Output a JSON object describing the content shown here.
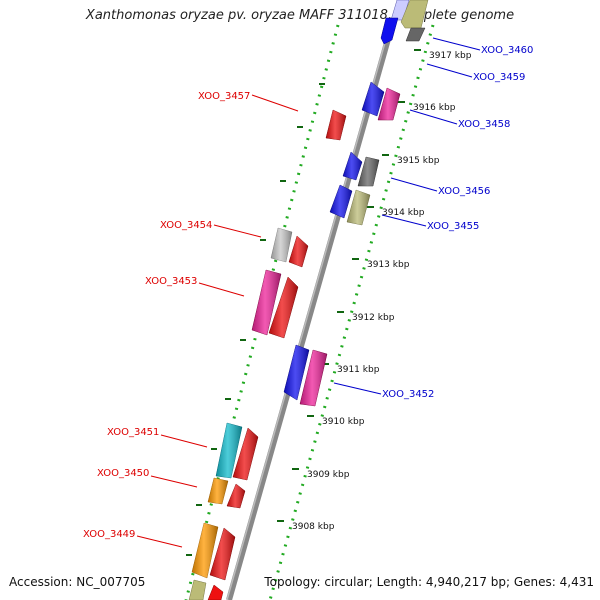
{
  "title": "Xanthomonas oryzae pv. oryzae MAFF 311018, complete genome",
  "footer": {
    "accession": "Accession: NC_007705",
    "topology": "Topology: circular; Length: 4,940,217 bp; Genes: 4,431"
  },
  "scale_labels": [
    "3917 kbp",
    "3916 kbp",
    "3915 kbp",
    "3914 kbp",
    "3913 kbp",
    "3912 kbp",
    "3911 kbp",
    "3910 kbp",
    "3909 kbp",
    "3908 kbp"
  ],
  "gene_labels": [
    {
      "text": "XOO_3460",
      "color": "#0000cc",
      "side": "right"
    },
    {
      "text": "XOO_3459",
      "color": "#0000cc",
      "side": "right"
    },
    {
      "text": "XOO_3458",
      "color": "#0000cc",
      "side": "right"
    },
    {
      "text": "XOO_3457",
      "color": "#dd0000",
      "side": "left"
    },
    {
      "text": "XOO_3456",
      "color": "#0000cc",
      "side": "right"
    },
    {
      "text": "XOO_3455",
      "color": "#0000cc",
      "side": "right"
    },
    {
      "text": "XOO_3454",
      "color": "#dd0000",
      "side": "left"
    },
    {
      "text": "XOO_3453",
      "color": "#dd0000",
      "side": "left"
    },
    {
      "text": "XOO_3452",
      "color": "#0000cc",
      "side": "right"
    },
    {
      "text": "XOO_3451",
      "color": "#dd0000",
      "side": "left"
    },
    {
      "text": "XOO_3450",
      "color": "#dd0000",
      "side": "left"
    },
    {
      "text": "XOO_3449",
      "color": "#dd0000",
      "side": "left"
    }
  ],
  "gene_colors": {
    "blue": "#1010ee",
    "red": "#ee1111",
    "pink": "#ee2299",
    "gray": "#666666",
    "lightgray": "#c8c8c8",
    "olive": "#bbbb77",
    "cyan": "#11bbcc",
    "orange": "#ff9900",
    "lavender": "#ccccff"
  }
}
